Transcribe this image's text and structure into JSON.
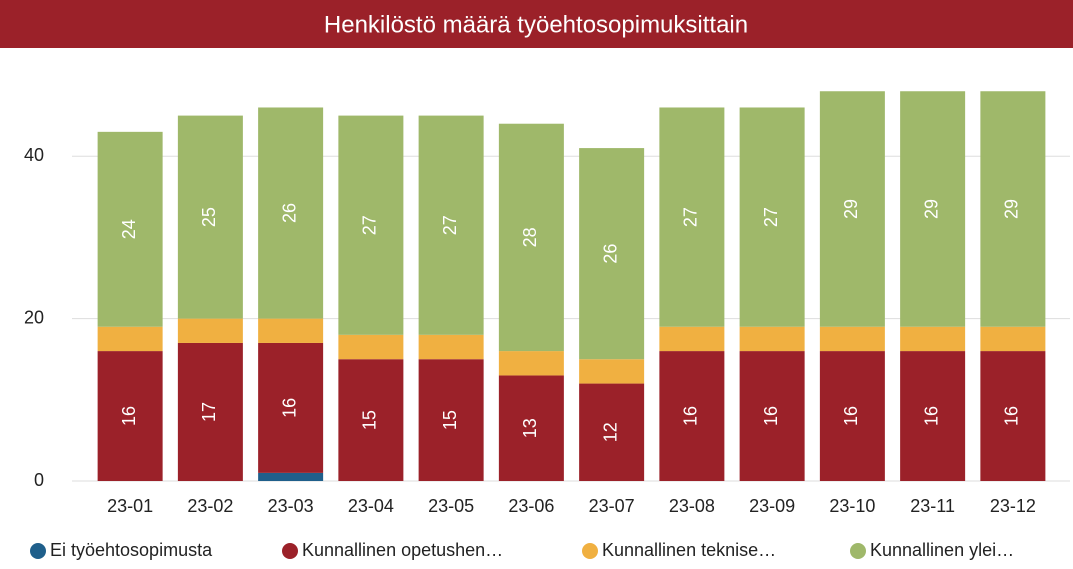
{
  "chart_data": {
    "type": "stacked_bar",
    "title": "Henkilöstö määrä työehtosopimuksittain",
    "categories": [
      "23-01",
      "23-02",
      "23-03",
      "23-04",
      "23-05",
      "23-06",
      "23-07",
      "23-08",
      "23-09",
      "23-10",
      "23-11",
      "23-12"
    ],
    "series": [
      {
        "name": "Ei työehtosopimusta",
        "color": "#1f5f8b",
        "labels": false,
        "values": [
          0,
          0,
          1,
          0,
          0,
          0,
          0,
          0,
          0,
          0,
          0,
          0
        ]
      },
      {
        "name": "Kunnallinen opetushen…",
        "color": "#9b2129",
        "labels": true,
        "values": [
          16,
          17,
          16,
          15,
          15,
          13,
          12,
          16,
          16,
          16,
          16,
          16
        ]
      },
      {
        "name": "Kunnallinen teknise…",
        "color": "#f0b041",
        "labels": false,
        "values": [
          3,
          3,
          3,
          3,
          3,
          3,
          3,
          3,
          3,
          3,
          3,
          3
        ]
      },
      {
        "name": "Kunnallinen ylei…",
        "color": "#9fb86a",
        "labels": true,
        "values": [
          24,
          25,
          26,
          27,
          27,
          28,
          26,
          27,
          27,
          29,
          29,
          29
        ]
      }
    ],
    "ylim": [
      0,
      50
    ],
    "yticks": [
      0,
      20,
      40
    ],
    "grid": true,
    "legend": "bottom"
  }
}
